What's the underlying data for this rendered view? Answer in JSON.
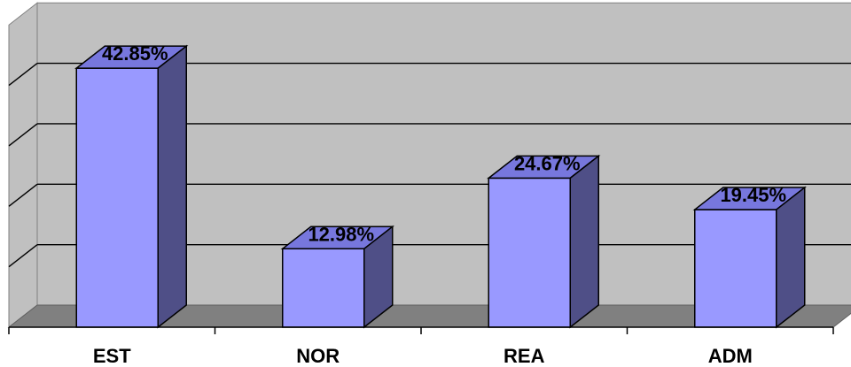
{
  "chart_data": {
    "type": "bar",
    "categories": [
      "EST",
      "NOR",
      "REA",
      "ADM"
    ],
    "values": [
      42.85,
      12.98,
      24.67,
      19.45
    ],
    "data_labels": [
      "42.85%",
      "12.98%",
      "24.67%",
      "19.45%"
    ],
    "ylim": [
      0,
      50
    ],
    "grid": true,
    "legend": "none",
    "style": "3d-column",
    "colors": {
      "bar_front": "#9999FF",
      "bar_top": "#7777DD",
      "bar_side": "#4F4F87",
      "wall": "#C0C0C0",
      "floor": "#808080",
      "gridline": "#000000"
    }
  }
}
